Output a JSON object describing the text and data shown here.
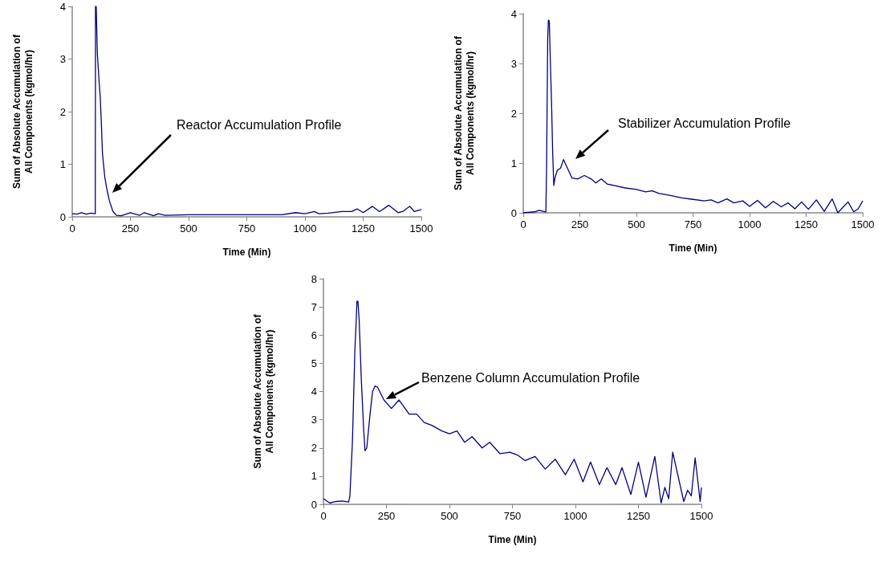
{
  "chart_data": [
    {
      "type": "line",
      "xlabel": "Time (Min)",
      "ylabel": "Sum of Absolute Accumulation of\nAll Components (kgmol/hr)",
      "xlim": [
        0,
        1500
      ],
      "xticks": [
        0,
        250,
        500,
        750,
        1000,
        1250,
        1500
      ],
      "ylim": [
        0,
        4
      ],
      "yticks": [
        0,
        1,
        2,
        3,
        4
      ],
      "marker": "none",
      "line_style": "solid",
      "annotations": [
        "Reactor Accumulation Profile"
      ],
      "series": [
        {
          "color": "#000080",
          "x": [
            0,
            20,
            40,
            60,
            80,
            99,
            100,
            103,
            108,
            115,
            120,
            125,
            130,
            140,
            150,
            160,
            175,
            190,
            210,
            250,
            290,
            310,
            350,
            370,
            400,
            500,
            700,
            900,
            960,
            1000,
            1040,
            1060,
            1100,
            1160,
            1200,
            1225,
            1250,
            1290,
            1320,
            1360,
            1400,
            1420,
            1450,
            1470,
            1500
          ],
          "values": [
            0.06,
            0.05,
            0.08,
            0.05,
            0.07,
            0.06,
            4,
            4,
            3.1,
            2.6,
            2.3,
            1.8,
            1.2,
            0.75,
            0.5,
            0.3,
            0.1,
            0.03,
            0.02,
            0.08,
            0.03,
            0.08,
            0.02,
            0.06,
            0.03,
            0.04,
            0.04,
            0.04,
            0.08,
            0.06,
            0.1,
            0.06,
            0.07,
            0.1,
            0.1,
            0.15,
            0.08,
            0.2,
            0.1,
            0.22,
            0.08,
            0.1,
            0.2,
            0.1,
            0.14
          ]
        }
      ]
    },
    {
      "type": "line",
      "xlabel": "Time (Min)",
      "ylabel": "Sum of Absolute Accumulation of\nAll Components (kgmol/hr)",
      "xlim": [
        0,
        1500
      ],
      "xticks": [
        0,
        250,
        500,
        750,
        1000,
        1250,
        1500
      ],
      "ylim": [
        0,
        4
      ],
      "yticks": [
        0,
        1,
        2,
        3,
        4
      ],
      "marker": "none",
      "line_style": "solid",
      "annotations": [
        "Stabilizer Accumulation Profile"
      ],
      "series": [
        {
          "color": "#000080",
          "x": [
            0,
            50,
            70,
            100,
            103,
            108,
            111,
            115,
            120,
            125,
            130,
            135,
            140,
            150,
            165,
            178,
            195,
            215,
            240,
            270,
            300,
            320,
            345,
            370,
            400,
            450,
            500,
            540,
            570,
            600,
            650,
            700,
            750,
            800,
            830,
            860,
            900,
            930,
            970,
            1000,
            1035,
            1070,
            1105,
            1140,
            1170,
            1200,
            1230,
            1260,
            1295,
            1330,
            1365,
            1390,
            1435,
            1460,
            1480,
            1500
          ],
          "values": [
            0,
            0.02,
            0.05,
            0.02,
            0.9,
            3.5,
            3.87,
            3.85,
            3.0,
            2.2,
            1.2,
            0.55,
            0.7,
            0.85,
            0.9,
            1.07,
            0.9,
            0.7,
            0.68,
            0.75,
            0.68,
            0.6,
            0.68,
            0.58,
            0.55,
            0.5,
            0.47,
            0.42,
            0.44,
            0.39,
            0.35,
            0.3,
            0.27,
            0.24,
            0.26,
            0.2,
            0.28,
            0.2,
            0.24,
            0.13,
            0.25,
            0.1,
            0.23,
            0.12,
            0.2,
            0.08,
            0.22,
            0.07,
            0.26,
            0.03,
            0.28,
            0,
            0.22,
            0.02,
            0.08,
            0.24
          ]
        }
      ]
    },
    {
      "type": "line",
      "xlabel": "Time (Min)",
      "ylabel": "Sum of Absolute Accumulation of\nAll Components (kgmol/hr)",
      "xlim": [
        0,
        1500
      ],
      "xticks": [
        0,
        250,
        500,
        750,
        1000,
        1250,
        1500
      ],
      "ylim": [
        0,
        8
      ],
      "yticks": [
        0,
        1,
        2,
        3,
        4,
        5,
        6,
        7,
        8
      ],
      "marker": "none",
      "line_style": "solid",
      "annotations": [
        "Benzene Column Accumulation Profile"
      ],
      "series": [
        {
          "color": "#000080",
          "x": [
            0,
            25,
            50,
            75,
            100,
            105,
            115,
            125,
            130,
            133,
            137,
            142,
            150,
            160,
            165,
            172,
            185,
            195,
            205,
            215,
            240,
            270,
            300,
            340,
            370,
            400,
            430,
            470,
            500,
            530,
            560,
            590,
            630,
            660,
            700,
            740,
            770,
            800,
            840,
            880,
            920,
            960,
            995,
            1030,
            1060,
            1095,
            1125,
            1160,
            1185,
            1220,
            1250,
            1280,
            1315,
            1340,
            1355,
            1370,
            1386,
            1430,
            1445,
            1460,
            1475,
            1495,
            1500
          ],
          "values": [
            0.2,
            0.05,
            0.1,
            0.12,
            0.08,
            0.3,
            2.2,
            5.5,
            6.5,
            7.2,
            7.2,
            6.5,
            4.5,
            2.6,
            1.9,
            2.0,
            3.2,
            4.0,
            4.2,
            4.15,
            3.7,
            3.4,
            3.7,
            3.2,
            3.2,
            2.9,
            2.8,
            2.6,
            2.5,
            2.6,
            2.2,
            2.4,
            2.0,
            2.2,
            1.8,
            1.85,
            1.75,
            1.55,
            1.7,
            1.25,
            1.6,
            1.05,
            1.6,
            0.8,
            1.5,
            0.7,
            1.3,
            0.7,
            1.3,
            0.35,
            1.5,
            0.25,
            1.7,
            0.05,
            0.6,
            0.2,
            1.85,
            0.1,
            0.5,
            0.3,
            1.65,
            0.1,
            0.6
          ]
        }
      ]
    }
  ]
}
